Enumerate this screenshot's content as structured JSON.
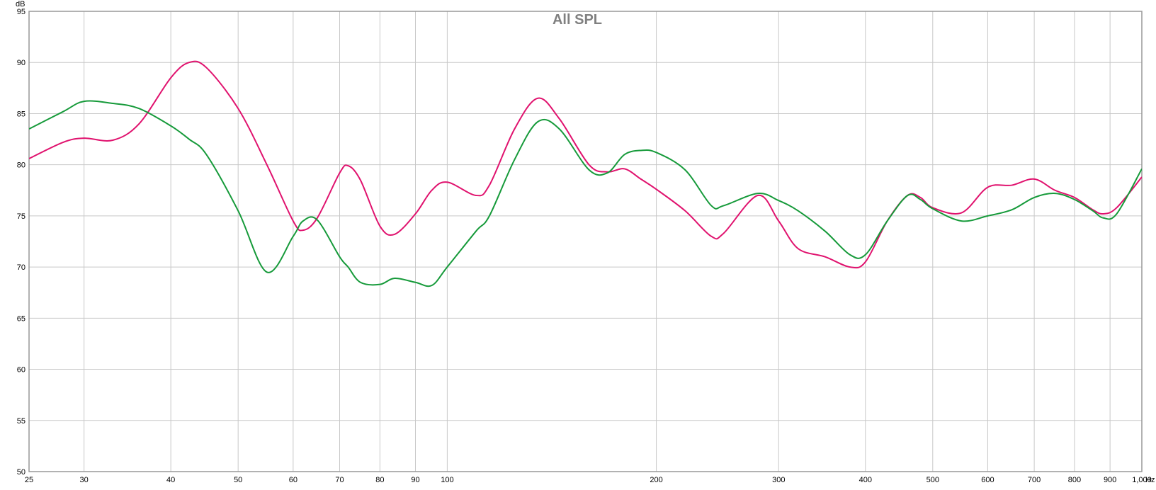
{
  "chart_data": {
    "type": "line",
    "title": "All SPL",
    "y_label": "dB",
    "x_label": "Hz",
    "log_x": true,
    "grid": true,
    "xlim": [
      25,
      1000
    ],
    "ylim": [
      50,
      95
    ],
    "xticks": [
      25,
      30,
      40,
      50,
      60,
      70,
      80,
      90,
      100,
      200,
      300,
      400,
      500,
      600,
      700,
      800,
      900,
      {
        "value": 1000,
        "label": "1,000"
      }
    ],
    "yticks": [
      50,
      55,
      60,
      65,
      70,
      75,
      80,
      85,
      90,
      95
    ],
    "x": [
      25,
      28,
      30,
      33,
      36,
      40,
      42.5,
      45,
      50,
      55,
      60,
      62,
      65,
      70,
      72,
      75,
      80,
      84,
      90,
      95,
      100,
      110,
      115,
      125,
      135,
      145,
      160,
      170,
      180,
      190,
      200,
      220,
      240,
      250,
      280,
      300,
      320,
      350,
      380,
      400,
      430,
      460,
      480,
      500,
      550,
      600,
      650,
      700,
      750,
      800,
      850,
      880,
      920,
      1000
    ],
    "series": [
      {
        "color": "#e0126e",
        "values": [
          80.6,
          82.2,
          82.6,
          82.4,
          84.0,
          88.5,
          90.0,
          89.5,
          85.5,
          80,
          74.5,
          73.6,
          74.8,
          79.2,
          79.9,
          78.5,
          74.0,
          73.2,
          75.2,
          77.5,
          78.3,
          77.0,
          78.0,
          83.5,
          86.5,
          84.5,
          80.0,
          79.3,
          79.6,
          78.6,
          77.6,
          75.5,
          73.0,
          73.3,
          77.0,
          74.5,
          71.8,
          71.0,
          70.0,
          70.5,
          74.5,
          77.0,
          76.8,
          75.8,
          75.3,
          77.8,
          78.0,
          78.6,
          77.5,
          76.8,
          75.6,
          75.2,
          75.8,
          78.8
        ]
      },
      {
        "color": "#169a3a",
        "values": [
          83.5,
          85.2,
          86.2,
          86.0,
          85.5,
          83.8,
          82.5,
          81.0,
          75.5,
          69.5,
          73.0,
          74.5,
          74.6,
          71.0,
          70.0,
          68.5,
          68.3,
          68.9,
          68.5,
          68.2,
          70.0,
          73.5,
          75.0,
          80.5,
          84.2,
          83.5,
          79.5,
          79.2,
          81.0,
          81.4,
          81.2,
          79.5,
          76.0,
          76.0,
          77.2,
          76.5,
          75.5,
          73.5,
          71.2,
          71.2,
          74.5,
          77.0,
          76.6,
          75.7,
          74.5,
          75.0,
          75.6,
          76.8,
          77.2,
          76.6,
          75.5,
          74.8,
          75.2,
          79.6
        ]
      }
    ]
  }
}
